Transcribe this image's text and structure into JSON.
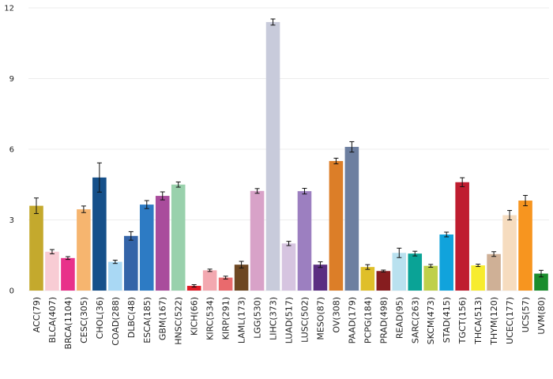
{
  "chart_data": {
    "type": "bar",
    "title": "",
    "xlabel": "",
    "ylabel": "",
    "ylim": [
      0,
      12
    ],
    "yticks": [
      0,
      3,
      6,
      9,
      12
    ],
    "grid": "horizontal",
    "legend": "none",
    "categories": [
      "ACC(79)",
      "BLCA(407)",
      "BRCA(1104)",
      "CESC(305)",
      "CHOL(36)",
      "COAD(288)",
      "DLBC(48)",
      "ESCA(185)",
      "GBM(167)",
      "HNSC(522)",
      "KICH(66)",
      "KIRC(534)",
      "KIRP(291)",
      "LAML(173)",
      "LGG(530)",
      "LIHC(373)",
      "LUAD(517)",
      "LUSC(502)",
      "MESO(87)",
      "OV(308)",
      "PAAD(179)",
      "PCPG(184)",
      "PRAD(498)",
      "READ(95)",
      "SARC(263)",
      "SKCM(473)",
      "STAD(415)",
      "TGCT(156)",
      "THCA(513)",
      "THYM(120)",
      "UCEC(177)",
      "UCS(57)",
      "UVM(80)"
    ],
    "values": [
      3.6,
      1.65,
      1.38,
      3.45,
      4.8,
      1.22,
      2.32,
      3.65,
      4.02,
      4.5,
      0.2,
      0.86,
      0.55,
      1.1,
      4.23,
      11.4,
      2.0,
      4.22,
      1.1,
      5.5,
      6.1,
      1.0,
      0.83,
      1.6,
      1.57,
      1.05,
      2.38,
      4.6,
      1.07,
      1.55,
      3.2,
      3.82,
      0.72
    ],
    "errors": [
      0.33,
      0.09,
      0.06,
      0.14,
      0.62,
      0.07,
      0.18,
      0.17,
      0.17,
      0.11,
      0.05,
      0.05,
      0.06,
      0.14,
      0.1,
      0.13,
      0.09,
      0.12,
      0.12,
      0.12,
      0.22,
      0.1,
      0.04,
      0.2,
      0.1,
      0.06,
      0.1,
      0.19,
      0.05,
      0.1,
      0.2,
      0.22,
      0.14
    ],
    "colors": [
      "#c4a92d",
      "#f8ccd4",
      "#e8318a",
      "#f6b56f",
      "#16508a",
      "#a9d8f4",
      "#3464a8",
      "#2d7bc4",
      "#a94c9c",
      "#99d1ac",
      "#df1b25",
      "#f3a8b0",
      "#e96a6d",
      "#6d4722",
      "#d8a2c8",
      "#c8cbdb",
      "#d6c4e0",
      "#9c7fc0",
      "#5b2e82",
      "#dc7e28",
      "#6d7fa0",
      "#dfbf29",
      "#861d1f",
      "#b9e1ef",
      "#0aa396",
      "#bfd04a",
      "#11a3dc",
      "#bf1d30",
      "#f7ec2e",
      "#cfb096",
      "#f6dcbf",
      "#f7951f",
      "#1a8d2d"
    ]
  }
}
